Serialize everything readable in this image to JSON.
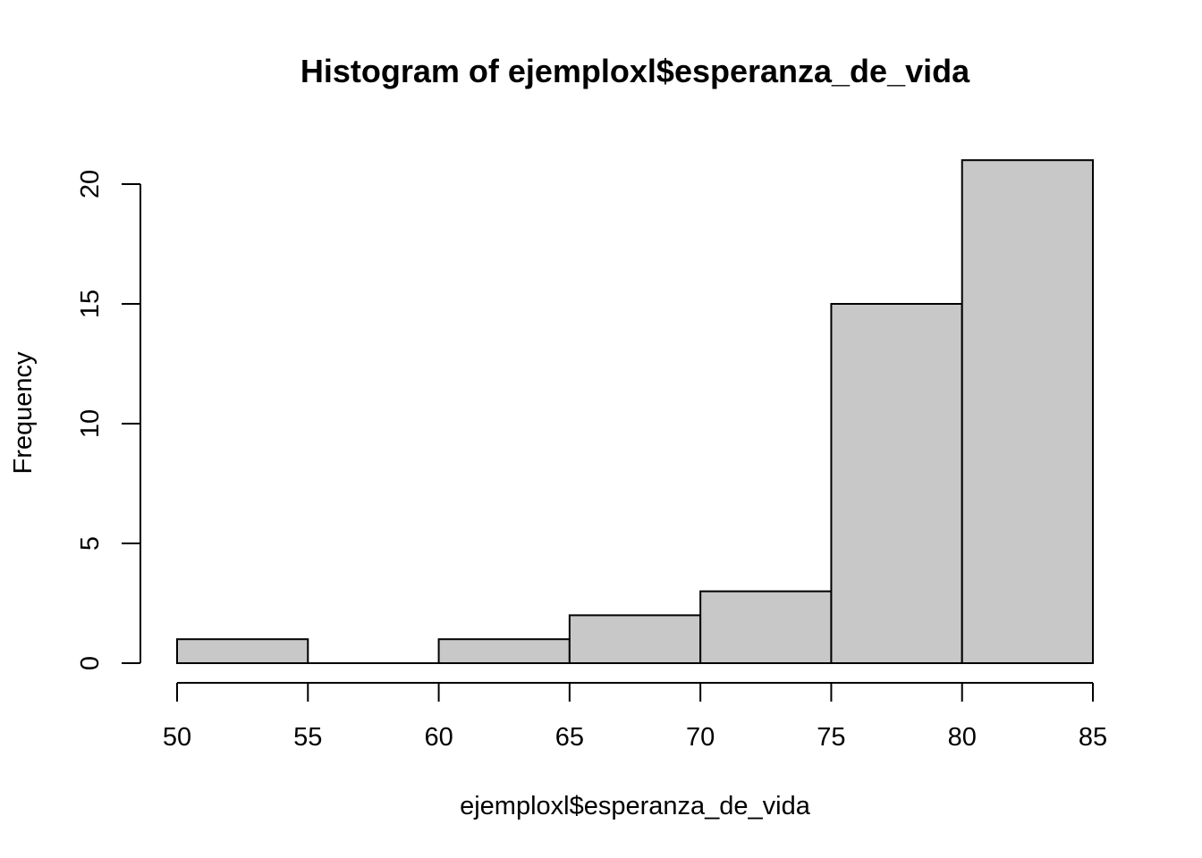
{
  "chart_data": {
    "type": "bar",
    "title": "Histogram of ejemploxl$esperanza_de_vida",
    "xlabel": "ejemploxl$esperanza_de_vida",
    "ylabel": "Frequency",
    "bins": [
      {
        "start": 50,
        "end": 55,
        "count": 1
      },
      {
        "start": 55,
        "end": 60,
        "count": 0
      },
      {
        "start": 60,
        "end": 65,
        "count": 1
      },
      {
        "start": 65,
        "end": 70,
        "count": 2
      },
      {
        "start": 70,
        "end": 75,
        "count": 3
      },
      {
        "start": 75,
        "end": 80,
        "count": 15
      },
      {
        "start": 80,
        "end": 85,
        "count": 21
      }
    ],
    "xticks": [
      50,
      55,
      60,
      65,
      70,
      75,
      80,
      85
    ],
    "yticks": [
      0,
      5,
      10,
      15,
      20
    ],
    "xlim": [
      50,
      85
    ],
    "ylim": [
      0,
      21
    ],
    "grid": false,
    "colors": {
      "bar_fill": "#c8c8c8",
      "bar_stroke": "#000000"
    }
  }
}
